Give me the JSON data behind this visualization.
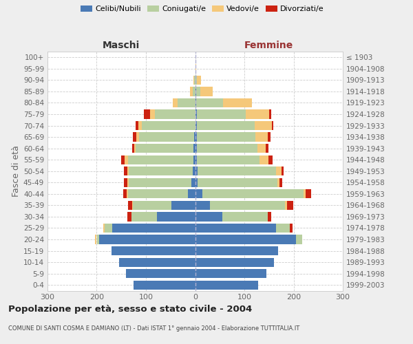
{
  "age_groups": [
    "0-4",
    "5-9",
    "10-14",
    "15-19",
    "20-24",
    "25-29",
    "30-34",
    "35-39",
    "40-44",
    "45-49",
    "50-54",
    "55-59",
    "60-64",
    "65-69",
    "70-74",
    "75-79",
    "80-84",
    "85-89",
    "90-94",
    "95-99",
    "100+"
  ],
  "birth_years": [
    "1999-2003",
    "1994-1998",
    "1989-1993",
    "1984-1988",
    "1979-1983",
    "1974-1978",
    "1969-1973",
    "1964-1968",
    "1959-1963",
    "1954-1958",
    "1949-1953",
    "1944-1948",
    "1939-1943",
    "1934-1938",
    "1929-1933",
    "1924-1928",
    "1919-1923",
    "1914-1918",
    "1909-1913",
    "1904-1908",
    "≤ 1903"
  ],
  "male_celibi": [
    125,
    140,
    155,
    170,
    195,
    168,
    78,
    48,
    15,
    7,
    5,
    4,
    3,
    2,
    0,
    0,
    0,
    0,
    0,
    0,
    0
  ],
  "male_coniugati": [
    0,
    0,
    0,
    0,
    5,
    16,
    52,
    78,
    122,
    128,
    130,
    132,
    118,
    112,
    108,
    82,
    35,
    5,
    2,
    0,
    0
  ],
  "male_vedovi": [
    0,
    0,
    0,
    0,
    3,
    3,
    0,
    2,
    2,
    3,
    3,
    8,
    3,
    5,
    8,
    10,
    10,
    5,
    2,
    0,
    0
  ],
  "male_divorziati": [
    0,
    0,
    0,
    0,
    0,
    0,
    8,
    8,
    7,
    7,
    7,
    6,
    4,
    8,
    5,
    12,
    0,
    0,
    0,
    0,
    0
  ],
  "female_nubili": [
    128,
    145,
    160,
    168,
    205,
    165,
    55,
    30,
    15,
    5,
    5,
    3,
    3,
    3,
    3,
    3,
    2,
    2,
    0,
    0,
    0
  ],
  "female_coniugate": [
    0,
    0,
    0,
    0,
    13,
    28,
    92,
    152,
    205,
    162,
    160,
    128,
    123,
    120,
    118,
    100,
    55,
    8,
    4,
    0,
    0
  ],
  "female_vedove": [
    0,
    0,
    0,
    0,
    0,
    0,
    0,
    5,
    5,
    5,
    10,
    18,
    18,
    25,
    35,
    48,
    58,
    25,
    8,
    2,
    0
  ],
  "female_divorziate": [
    0,
    0,
    0,
    0,
    0,
    5,
    8,
    12,
    10,
    5,
    5,
    8,
    5,
    5,
    3,
    3,
    0,
    0,
    0,
    0,
    0
  ],
  "color_celibi": "#4a7ab5",
  "color_coniugati": "#b8cfa0",
  "color_vedovi": "#f5c87a",
  "color_divorziati": "#cc2211",
  "title": "Popolazione per età, sesso e stato civile - 2004",
  "subtitle": "COMUNE DI SANTI COSMA E DAMIANO (LT) - Dati ISTAT 1° gennaio 2004 - Elaborazione TUTTITALIA.IT",
  "label_maschi": "Maschi",
  "label_femmine": "Femmine",
  "label_fasce": "Fasce di età",
  "legend_labels": [
    "Celibi/Nubili",
    "Coniugati/e",
    "Vedovi/e",
    "Divorziati/e"
  ],
  "xlim": 300,
  "bg_color": "#eeeeee",
  "plot_bg": "#ffffff"
}
